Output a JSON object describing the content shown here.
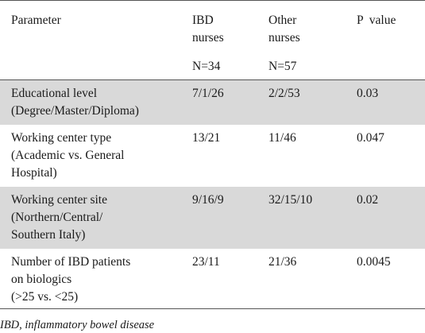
{
  "table": {
    "headers": {
      "parameter": "Parameter",
      "ibd_title": "IBD\nnurses",
      "ibd_n": "N=34",
      "other_title": "Other\nnurses",
      "other_n": "N=57",
      "pvalue": "P  value"
    },
    "rows": [
      {
        "parameter": "Educational level\n(Degree/Master/Diploma)",
        "ibd": "7/1/26",
        "other": "2/2/53",
        "p": "0.03"
      },
      {
        "parameter": "Working center type\n(Academic vs. General\nHospital)",
        "ibd": "13/21",
        "other": "11/46",
        "p": "0.047"
      },
      {
        "parameter": "Working center site\n(Northern/Central/\nSouthern Italy)",
        "ibd": "9/16/9",
        "other": "32/15/10",
        "p": "0.02"
      },
      {
        "parameter": "Number of IBD patients\non biologics\n(>25 vs. <25)",
        "ibd": "23/11",
        "other": "21/36",
        "p": "0.0045"
      }
    ]
  },
  "footnote": "IBD, inflammatory bowel disease"
}
